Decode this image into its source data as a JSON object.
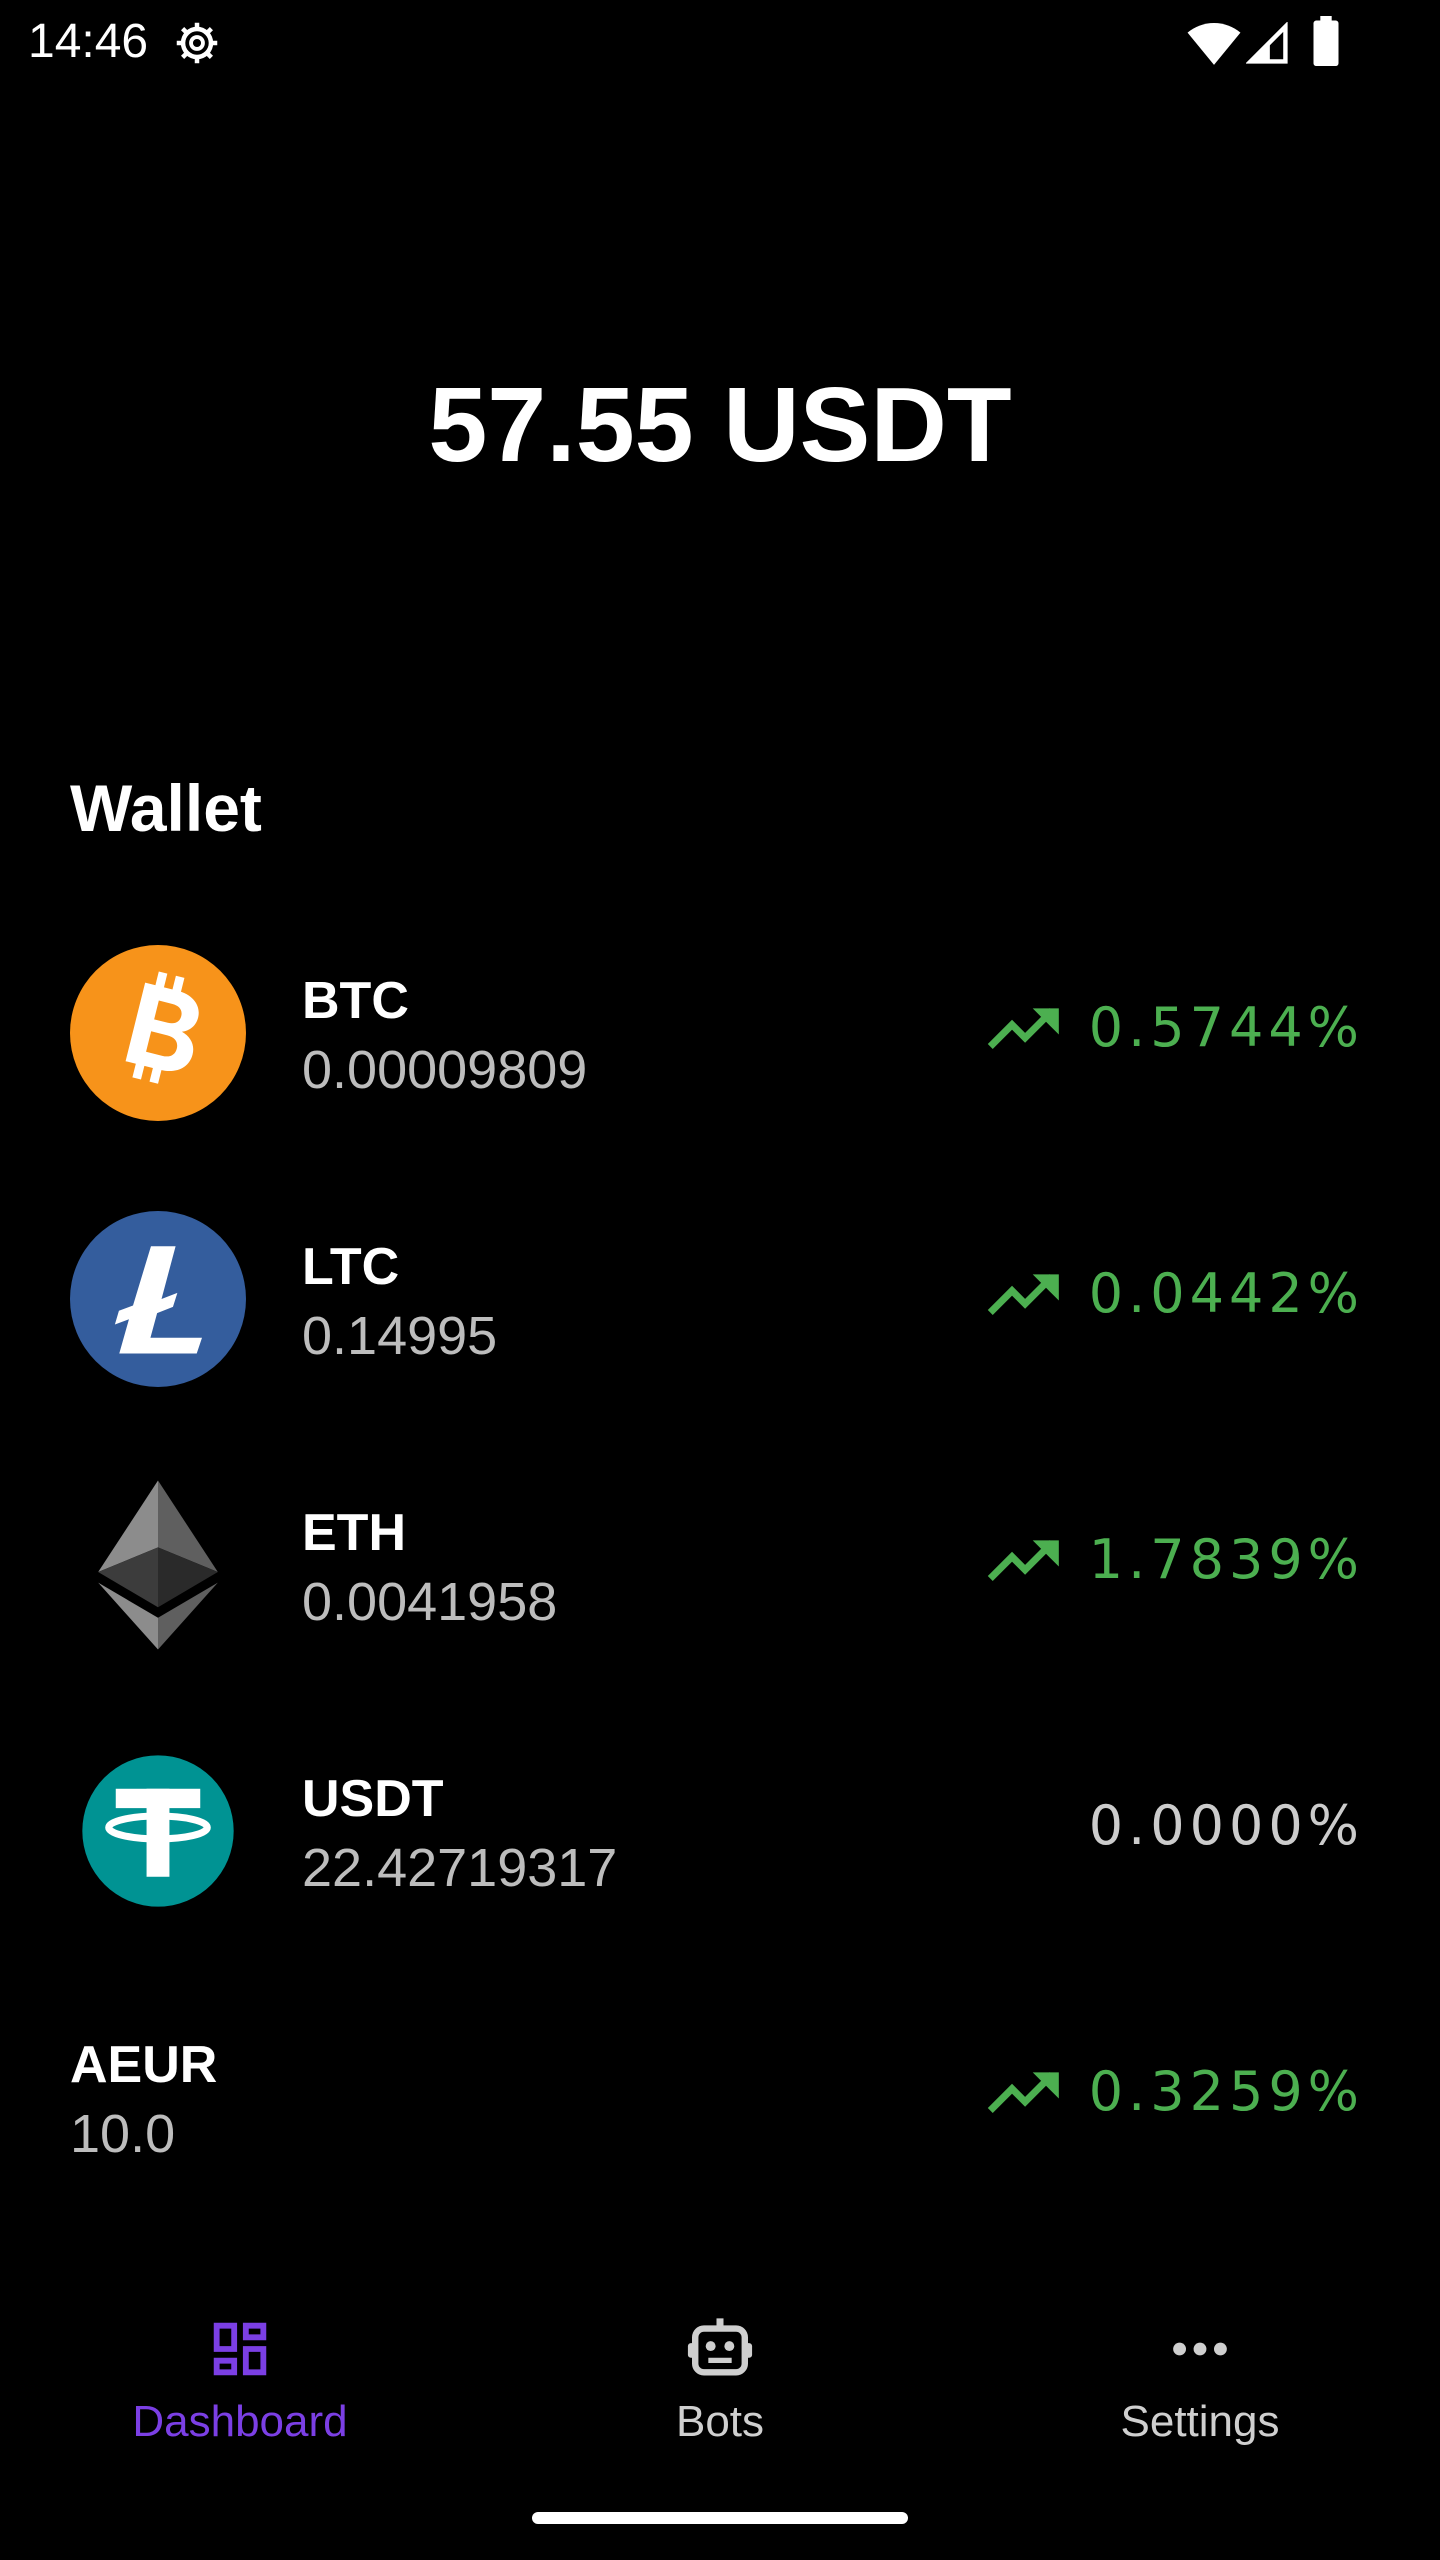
{
  "status_bar": {
    "time": "14:46",
    "icons": [
      "gear-icon",
      "wifi-icon",
      "cellular-signal-icon",
      "battery-icon"
    ]
  },
  "balance": {
    "value": "57.55 USDT"
  },
  "wallet": {
    "title": "Wallet",
    "items": [
      {
        "symbol": "BTC",
        "amount": "0.00009809",
        "change": "0.5744%",
        "trend": "up",
        "icon": "bitcoin-icon",
        "icon_color": "#f7931a"
      },
      {
        "symbol": "LTC",
        "amount": "0.14995",
        "change": "0.0442%",
        "trend": "up",
        "icon": "litecoin-icon",
        "icon_color": "#345d9d"
      },
      {
        "symbol": "ETH",
        "amount": "0.0041958",
        "change": "1.7839%",
        "trend": "up",
        "icon": "ethereum-icon",
        "icon_color": "#8c8c8c"
      },
      {
        "symbol": "USDT",
        "amount": "22.42719317",
        "change": "0.0000%",
        "trend": "none",
        "icon": "tether-icon",
        "icon_color": "#009393"
      },
      {
        "symbol": "AEUR",
        "amount": "10.0",
        "change": "0.3259%",
        "trend": "up",
        "icon": "",
        "icon_color": ""
      }
    ]
  },
  "bottom_nav": {
    "items": [
      {
        "label": "Dashboard",
        "icon": "dashboard-icon",
        "active": true
      },
      {
        "label": "Bots",
        "icon": "robot-icon",
        "active": false
      },
      {
        "label": "Settings",
        "icon": "more-horizontal-icon",
        "active": false
      }
    ]
  },
  "colors": {
    "background": "#000000",
    "positive": "#4caf50",
    "neutral": "#cccccc",
    "accent": "#7b3fe4",
    "secondary_text": "#bdbdbd"
  }
}
